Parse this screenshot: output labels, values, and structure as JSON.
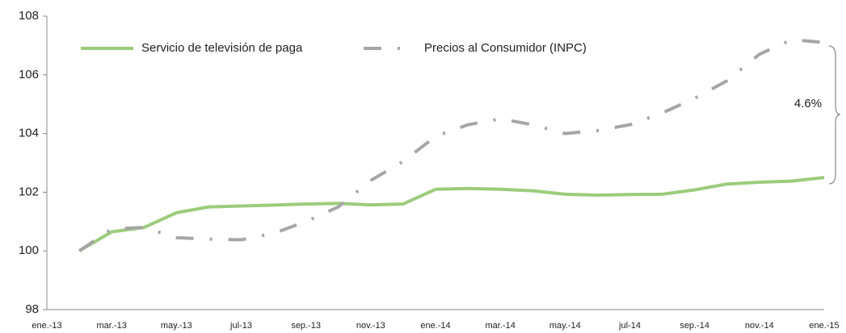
{
  "chart_data": {
    "type": "line",
    "categories": [
      "ene.-13",
      null,
      "mar.-13",
      null,
      "may.-13",
      null,
      "jul-13",
      null,
      "sep.-13",
      null,
      "nov.-13",
      null,
      "ene.-14",
      null,
      "mar.-14",
      null,
      "may.-14",
      null,
      "jul-14",
      null,
      "sep.-14",
      null,
      "nov.-14",
      null,
      "ene.-15"
    ],
    "series": [
      {
        "name": "Servicio de televisión de paga",
        "color": "#9ccc7c",
        "style": "solid",
        "values": [
          null,
          100.0,
          100.65,
          100.8,
          101.3,
          101.5,
          101.53,
          101.56,
          101.6,
          101.62,
          101.57,
          101.6,
          102.1,
          102.13,
          102.1,
          102.05,
          101.93,
          101.9,
          101.92,
          101.93,
          102.08,
          102.28,
          102.34,
          102.38,
          102.5
        ]
      },
      {
        "name": "Precios al Consumidor (INPC)",
        "color": "#a6a6a6",
        "style": "dashdot",
        "values": [
          null,
          100.0,
          100.75,
          100.8,
          100.45,
          100.4,
          100.38,
          100.6,
          101.0,
          101.5,
          102.4,
          103.05,
          103.9,
          104.3,
          104.5,
          104.3,
          104.0,
          104.1,
          104.3,
          104.7,
          105.2,
          105.8,
          106.7,
          107.2,
          107.1
        ]
      }
    ],
    "ylim": [
      98,
      108
    ],
    "yticks": [
      98,
      100,
      102,
      104,
      106,
      108
    ],
    "annotations": [
      "4.6%"
    ],
    "legend": "top-left",
    "grid": false
  }
}
